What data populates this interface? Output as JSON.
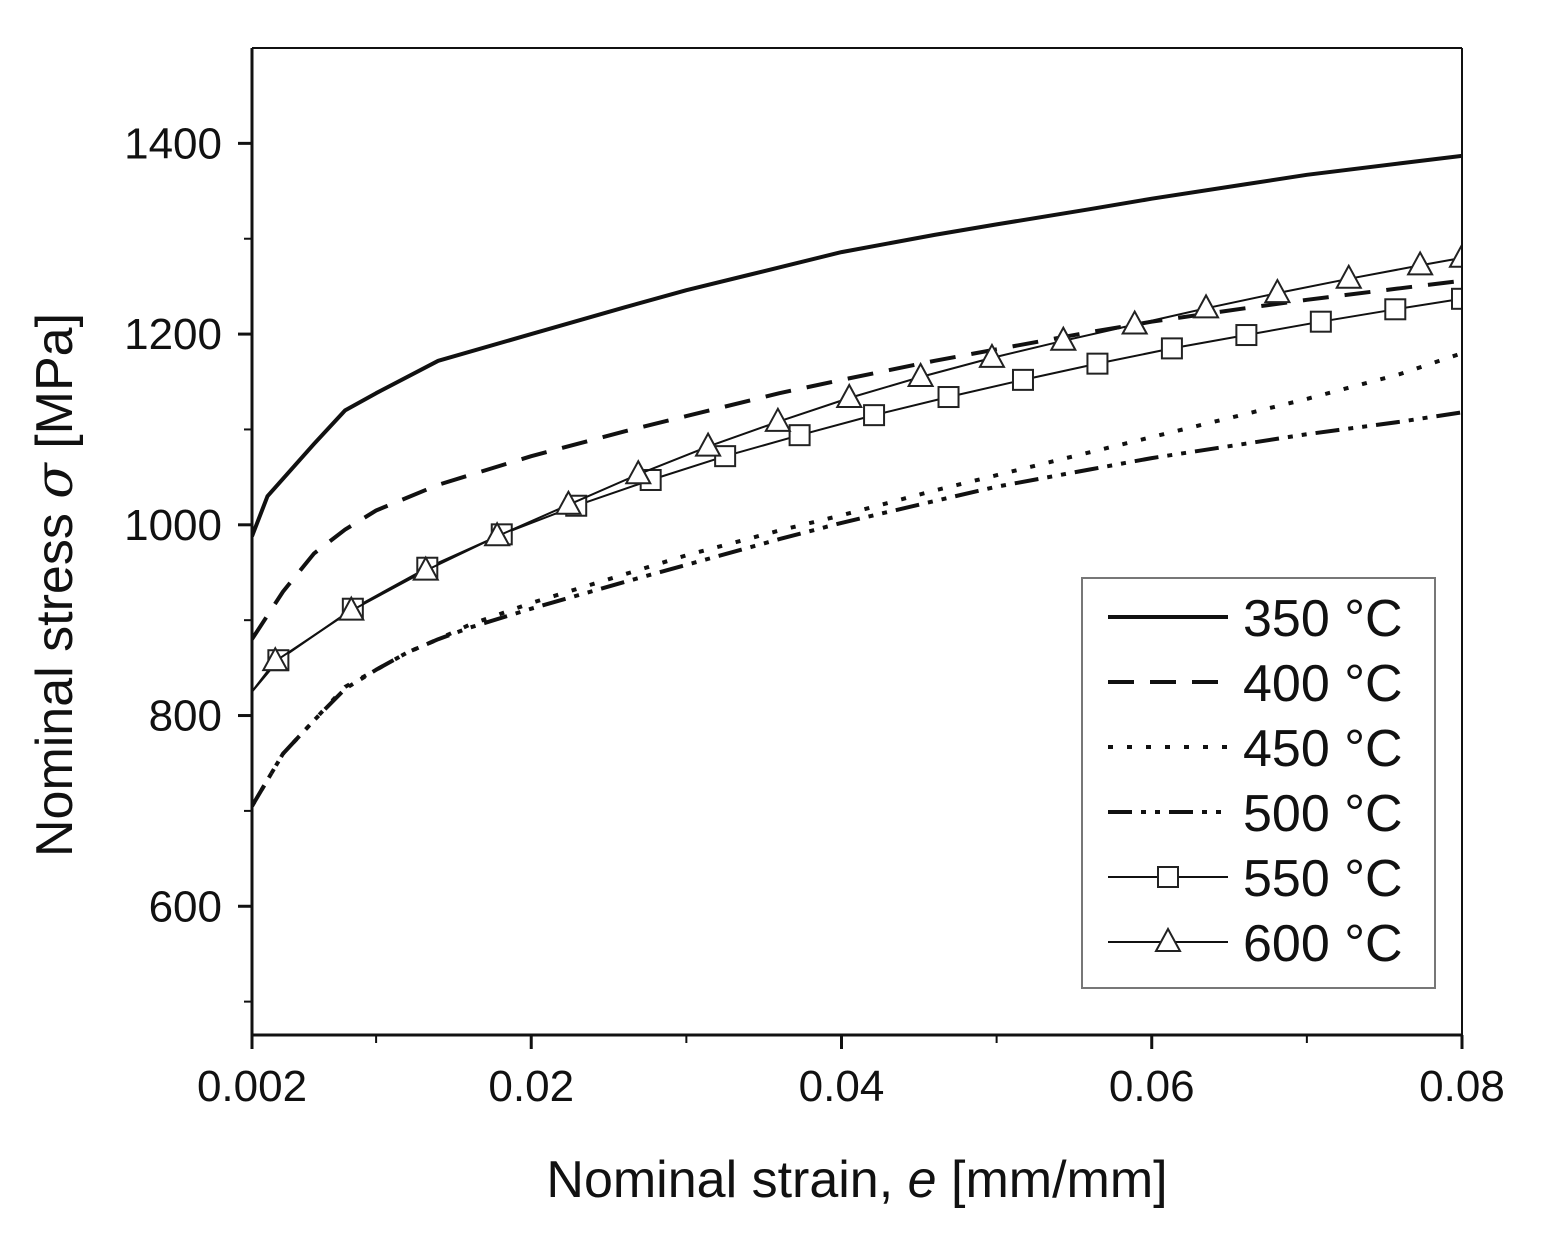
{
  "chart_data": {
    "type": "line",
    "title": "",
    "xlabel": {
      "prefix": "Nominal strain, ",
      "symbol": "e",
      "suffix": " [mm/mm]"
    },
    "ylabel": {
      "prefix": "Nominal stress ",
      "symbol": "σ",
      "suffix": " [MPa]"
    },
    "xlim": [
      0.002,
      0.08
    ],
    "ylim": [
      465,
      1500
    ],
    "x_ticks": [
      {
        "value": 0.002,
        "label": "0.002"
      },
      {
        "value": 0.02,
        "label": "0.02"
      },
      {
        "value": 0.04,
        "label": "0.04"
      },
      {
        "value": 0.06,
        "label": "0.06"
      },
      {
        "value": 0.08,
        "label": "0.08"
      }
    ],
    "x_minor_ticks": [
      0.01,
      0.03,
      0.05,
      0.07
    ],
    "y_ticks": [
      {
        "value": 600,
        "label": "600"
      },
      {
        "value": 800,
        "label": "800"
      },
      {
        "value": 1000,
        "label": "1000"
      },
      {
        "value": 1200,
        "label": "1200"
      },
      {
        "value": 1400,
        "label": "1400"
      }
    ],
    "y_minor_ticks": [
      500,
      700,
      900,
      1100,
      1300
    ],
    "grid": false,
    "legend_position": "bottom-right",
    "series": [
      {
        "name": "350 °C",
        "style": "solid",
        "marker": "none",
        "x": [
          0.002,
          0.003,
          0.006,
          0.008,
          0.01,
          0.014,
          0.02,
          0.026,
          0.03,
          0.034,
          0.04,
          0.046,
          0.05,
          0.056,
          0.06,
          0.066,
          0.07,
          0.076,
          0.08
        ],
        "y": [
          988,
          1030,
          1085,
          1120,
          1138,
          1172,
          1200,
          1228,
          1246,
          1262,
          1286,
          1304,
          1315,
          1331,
          1342,
          1357,
          1367,
          1379,
          1387
        ]
      },
      {
        "name": "400 °C",
        "style": "dash",
        "marker": "none",
        "x": [
          0.002,
          0.004,
          0.006,
          0.008,
          0.01,
          0.014,
          0.02,
          0.026,
          0.03,
          0.036,
          0.04,
          0.046,
          0.05,
          0.056,
          0.06,
          0.066,
          0.07,
          0.076,
          0.08
        ],
        "y": [
          880,
          930,
          970,
          995,
          1015,
          1042,
          1072,
          1098,
          1114,
          1138,
          1152,
          1172,
          1184,
          1202,
          1213,
          1227,
          1236,
          1248,
          1256
        ]
      },
      {
        "name": "450 °C",
        "style": "dot",
        "marker": "none",
        "x": [
          0.002,
          0.004,
          0.006,
          0.008,
          0.01,
          0.012,
          0.014,
          0.016,
          0.02,
          0.026,
          0.03,
          0.036,
          0.04,
          0.046,
          0.05,
          0.056,
          0.06,
          0.066,
          0.07,
          0.076,
          0.08
        ],
        "y": [
          705,
          760,
          795,
          830,
          848,
          866,
          880,
          895,
          918,
          948,
          968,
          994,
          1010,
          1036,
          1052,
          1076,
          1092,
          1116,
          1132,
          1158,
          1180
        ]
      },
      {
        "name": "500 °C",
        "style": "dashdotdot",
        "marker": "none",
        "x": [
          0.002,
          0.004,
          0.006,
          0.008,
          0.01,
          0.012,
          0.014,
          0.016,
          0.02,
          0.026,
          0.03,
          0.036,
          0.04,
          0.046,
          0.05,
          0.056,
          0.06,
          0.066,
          0.07,
          0.076,
          0.08
        ],
        "y": [
          705,
          760,
          795,
          828,
          848,
          866,
          880,
          892,
          912,
          940,
          958,
          985,
          1002,
          1025,
          1040,
          1058,
          1070,
          1085,
          1095,
          1108,
          1118
        ]
      },
      {
        "name": "550 °C",
        "style": "solid-thin",
        "marker": "square",
        "x": [
          0.002,
          0.0037,
          0.0085,
          0.0133,
          0.0181,
          0.0229,
          0.0277,
          0.0325,
          0.0373,
          0.0421,
          0.0469,
          0.0517,
          0.0565,
          0.0613,
          0.0661,
          0.0709,
          0.0757,
          0.08
        ],
        "y": [
          825,
          858,
          912,
          955,
          990,
          1020,
          1047,
          1072,
          1094,
          1115,
          1134,
          1152,
          1169,
          1185,
          1199,
          1213,
          1226,
          1237
        ]
      },
      {
        "name": "600 °C",
        "style": "solid-thin",
        "marker": "triangle",
        "x": [
          0.002,
          0.0035,
          0.0084,
          0.0132,
          0.0178,
          0.0224,
          0.0269,
          0.0314,
          0.0359,
          0.0405,
          0.0451,
          0.0497,
          0.0543,
          0.0589,
          0.0635,
          0.0681,
          0.0727,
          0.0773,
          0.08
        ],
        "y": [
          825,
          857,
          910,
          952,
          988,
          1021,
          1053,
          1082,
          1108,
          1133,
          1155,
          1175,
          1193,
          1210,
          1227,
          1243,
          1258,
          1272,
          1280
        ]
      }
    ]
  }
}
